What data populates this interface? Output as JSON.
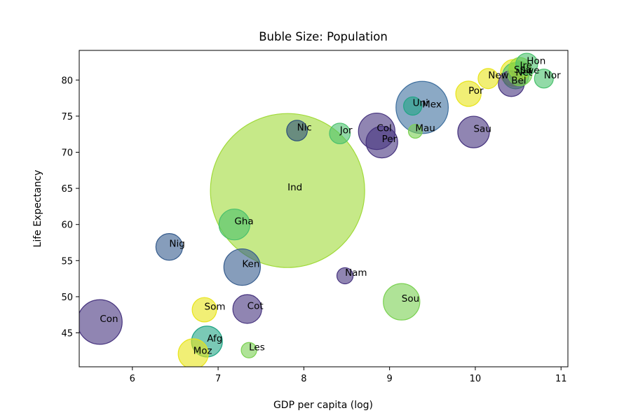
{
  "chart_data": {
    "type": "scatter",
    "title": "Buble Size: Population",
    "xlabel": "GDP per capita (log)",
    "ylabel": "Life Expectancy",
    "xlim": [
      5.38,
      11.08
    ],
    "ylim": [
      40.3,
      84.1
    ],
    "xticks": [
      "6",
      "7",
      "8",
      "9",
      "10",
      "11"
    ],
    "yticks": [
      "45",
      "50",
      "55",
      "60",
      "65",
      "70",
      "75",
      "80"
    ],
    "grid": false,
    "legend": "none",
    "points": [
      {
        "label": "Ind",
        "x": 7.81,
        "y": 64.7,
        "size": 1000,
        "color": "#a0da39",
        "alpha": 0.6
      },
      {
        "label": "Mex",
        "x": 9.38,
        "y": 76.2,
        "size": 115,
        "color": "#3e6f9e",
        "alpha": 0.6
      },
      {
        "label": "Con",
        "x": 5.62,
        "y": 46.5,
        "size": 84,
        "color": "#46337e",
        "alpha": 0.6
      },
      {
        "label": "Ken",
        "x": 7.28,
        "y": 54.1,
        "size": 56,
        "color": "#365c8d",
        "alpha": 0.6
      },
      {
        "label": "Col",
        "x": 8.85,
        "y": 72.9,
        "size": 56,
        "color": "#46337e",
        "alpha": 0.6
      },
      {
        "label": "Sou",
        "x": 9.14,
        "y": 49.3,
        "size": 56,
        "color": "#7ad151",
        "alpha": 0.6
      },
      {
        "label": "Afg",
        "x": 6.87,
        "y": 43.8,
        "size": 40,
        "color": "#21a585",
        "alpha": 0.6
      },
      {
        "label": "Per",
        "x": 8.91,
        "y": 71.4,
        "size": 42,
        "color": "#46337e",
        "alpha": 0.6
      },
      {
        "label": "Gha",
        "x": 7.19,
        "y": 60.0,
        "size": 40,
        "color": "#4ac16d",
        "alpha": 0.6
      },
      {
        "label": "Sau",
        "x": 9.98,
        "y": 72.8,
        "size": 42,
        "color": "#46337e",
        "alpha": 0.6
      },
      {
        "label": "Moz",
        "x": 6.71,
        "y": 42.1,
        "size": 38,
        "color": "#e8e419",
        "alpha": 0.6
      },
      {
        "label": "Cot",
        "x": 7.34,
        "y": 48.3,
        "size": 35,
        "color": "#46337e",
        "alpha": 0.6
      },
      {
        "label": "Nig",
        "x": 6.43,
        "y": 56.9,
        "size": 30,
        "color": "#365c8d",
        "alpha": 0.6
      },
      {
        "label": "Por",
        "x": 9.92,
        "y": 78.1,
        "size": 27,
        "color": "#e8e419",
        "alpha": 0.6
      },
      {
        "label": "Som",
        "x": 6.84,
        "y": 48.2,
        "size": 25,
        "color": "#e8e419",
        "alpha": 0.6
      },
      {
        "label": "Bel",
        "x": 10.42,
        "y": 79.5,
        "size": 28,
        "color": "#46337e",
        "alpha": 0.6
      },
      {
        "label": "Net",
        "x": 10.47,
        "y": 80.6,
        "size": 29,
        "color": "#4ac16d",
        "alpha": 0.6
      },
      {
        "label": "Spa",
        "x": 10.45,
        "y": 81.0,
        "size": 30,
        "color": "#e8e419",
        "alpha": 0.6
      },
      {
        "label": "Swe",
        "x": 10.52,
        "y": 80.9,
        "size": 25,
        "color": "#7ad151",
        "alpha": 0.6
      },
      {
        "label": "Ire",
        "x": 10.52,
        "y": 81.6,
        "size": 20,
        "color": "#a0da39",
        "alpha": 0.6
      },
      {
        "label": "Hon",
        "x": 10.6,
        "y": 82.2,
        "size": 20,
        "color": "#4ac16d",
        "alpha": 0.6
      },
      {
        "label": "Nic",
        "x": 7.92,
        "y": 73.0,
        "size": 18,
        "color": "#2c4f7a",
        "alpha": 0.6
      },
      {
        "label": "Jor",
        "x": 8.42,
        "y": 72.6,
        "size": 18,
        "color": "#4ac16d",
        "alpha": 0.6
      },
      {
        "label": "New",
        "x": 10.15,
        "y": 80.2,
        "size": 17,
        "color": "#e8e419",
        "alpha": 0.6
      },
      {
        "label": "Uni",
        "x": 9.27,
        "y": 76.4,
        "size": 14,
        "color": "#21a585",
        "alpha": 0.6
      },
      {
        "label": "Nor",
        "x": 10.8,
        "y": 80.2,
        "size": 15,
        "color": "#4ac16d",
        "alpha": 0.6
      },
      {
        "label": "Nam",
        "x": 8.48,
        "y": 52.9,
        "size": 11,
        "color": "#46337e",
        "alpha": 0.6
      },
      {
        "label": "Les",
        "x": 7.36,
        "y": 42.6,
        "size": 10,
        "color": "#7ad151",
        "alpha": 0.6
      },
      {
        "label": "Mau",
        "x": 9.3,
        "y": 72.9,
        "size": 8,
        "color": "#7ad151",
        "alpha": 0.6
      }
    ]
  }
}
